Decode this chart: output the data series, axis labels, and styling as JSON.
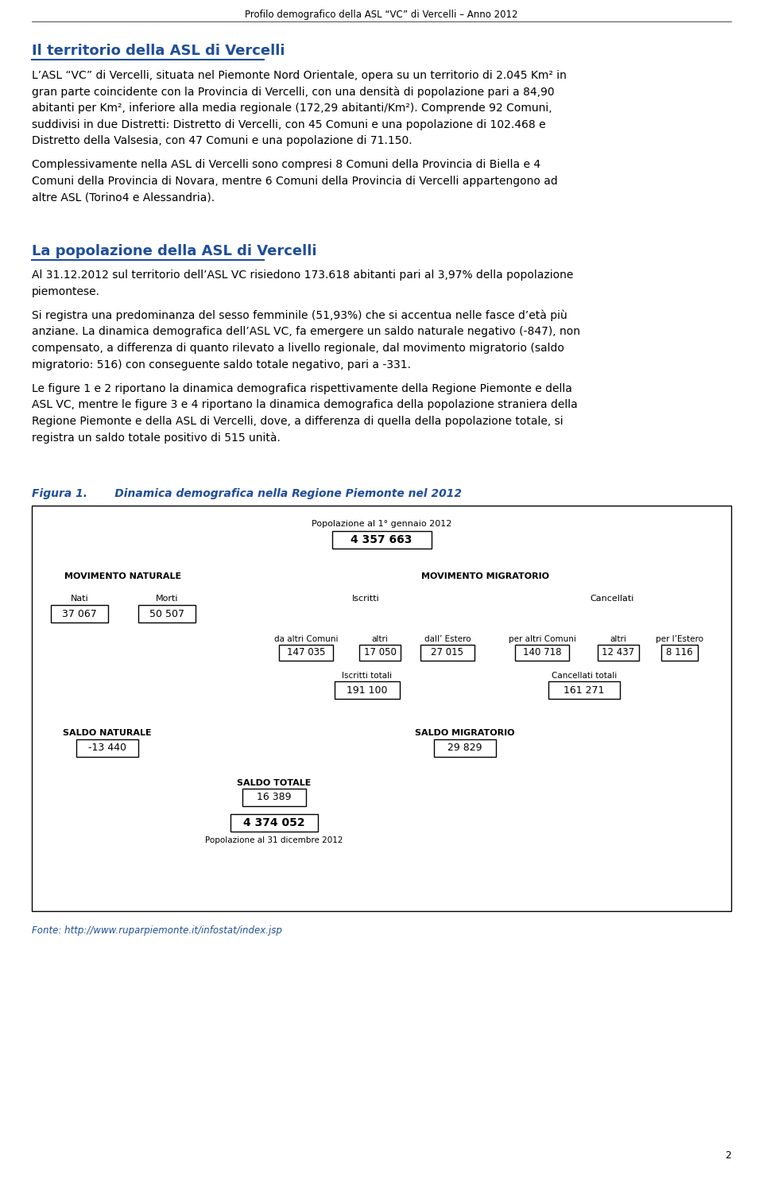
{
  "page_title": "Profilo demografico della ASL “VC” di Vercelli – Anno 2012",
  "page_number": "2",
  "section1_title": "Il territorio della ASL di Vercelli",
  "section1_title_color": "#1F4E9A",
  "section1_para1": "L’ASL “VC” di Vercelli, situata nel Piemonte Nord Orientale, opera su un territorio di 2.045 Km² in gran parte coincidente con la Provincia di Vercelli, con una densità di popolazione pari a 84,90 abitanti per Km², inferiore alla media regionale (172,29 abitanti/Km²). Comprende 92 Comuni, suddivisi in due Distretti: Distretto di Vercelli, con 45 Comuni e una popolazione di 102.468 e Distretto della Valsesia, con 47 Comuni e una popolazione di 71.150.",
  "section1_para2": "Complessivamente nella ASL di Vercelli sono compresi 8 Comuni della Provincia di Biella e 4 Comuni della Provincia di Novara, mentre 6 Comuni della Provincia di Vercelli appartengono ad altre ASL (Torino4 e Alessandria).",
  "section2_title": "La popolazione della ASL di Vercelli",
  "section2_title_color": "#1F4E9A",
  "section2_para1": "Al 31.12.2012 sul territorio dell’ASL VC risiedono 173.618 abitanti pari al 3,97% della popolazione piemontese.",
  "section2_para2": "Si registra una predominanza del sesso femminile (51,93%) che si accentua nelle fasce d’età più anziane. La dinamica demografica dell’ASL VC, fa emergere un saldo naturale negativo (-847), non compensato, a differenza di quanto rilevato a livello regionale, dal movimento migratorio (saldo migratorio: 516) con conseguente saldo totale negativo, pari a -331.",
  "section2_para3": "Le figure 1 e 2 riportano la dinamica demografica rispettivamente della Regione Piemonte e della ASL VC, mentre le figure 3 e 4 riportano la dinamica demografica della popolazione straniera della Regione Piemonte e della ASL di Vercelli, dove, a differenza di quella della popolazione totale, si registra un saldo totale positivo di 515 unità.",
  "figure_label": "Figura 1.",
  "figure_title": "      Dinamica demografica nella Regione Piemonte nel 2012",
  "figure_label_color": "#1F4E9A",
  "fonte_text": "Fonte: http://www.ruparpiemonte.it/infostat/index.jsp",
  "fonte_color": "#1F4E9A",
  "nodes": {
    "pop_start_label": "Popolazione al 1° gennaio 2012",
    "pop_start_value": "4 357 663",
    "mov_nat_label": "MOVIMENTO NATURALE",
    "mov_mig_label": "MOVIMENTO MIGRATORIO",
    "nati_label": "Nati",
    "nati_value": "37 067",
    "morti_label": "Morti",
    "morti_value": "50 507",
    "iscritti_label": "Iscritti",
    "altri_comuni_label": "da altri Comuni",
    "altri_comuni_value": "147 035",
    "altri_label": "altri",
    "altri_value": "17 050",
    "estero_label": "dall’ Estero",
    "estero_value": "27 015",
    "cancellati_label": "Cancellati",
    "per_altri_comuni_label": "per altri Comuni",
    "per_altri_comuni_value": "140 718",
    "altri2_label": "altri",
    "altri2_value": "12 437",
    "per_estero_label": "per l’Estero",
    "per_estero_value": "8 116",
    "iscritti_tot_label": "Iscritti totali",
    "iscritti_tot_value": "191 100",
    "cancellati_tot_label": "Cancellati totali",
    "cancellati_tot_value": "161 271",
    "saldo_nat_label": "SALDO NATURALE",
    "saldo_nat_value": "-13 440",
    "saldo_mig_label": "SALDO MIGRATORIO",
    "saldo_mig_value": "29 829",
    "saldo_tot_label": "SALDO TOTALE",
    "saldo_tot_value": "16 389",
    "pop_end_value": "4 374 052",
    "pop_end_label": "Popolazione al 31 dicembre 2012"
  }
}
